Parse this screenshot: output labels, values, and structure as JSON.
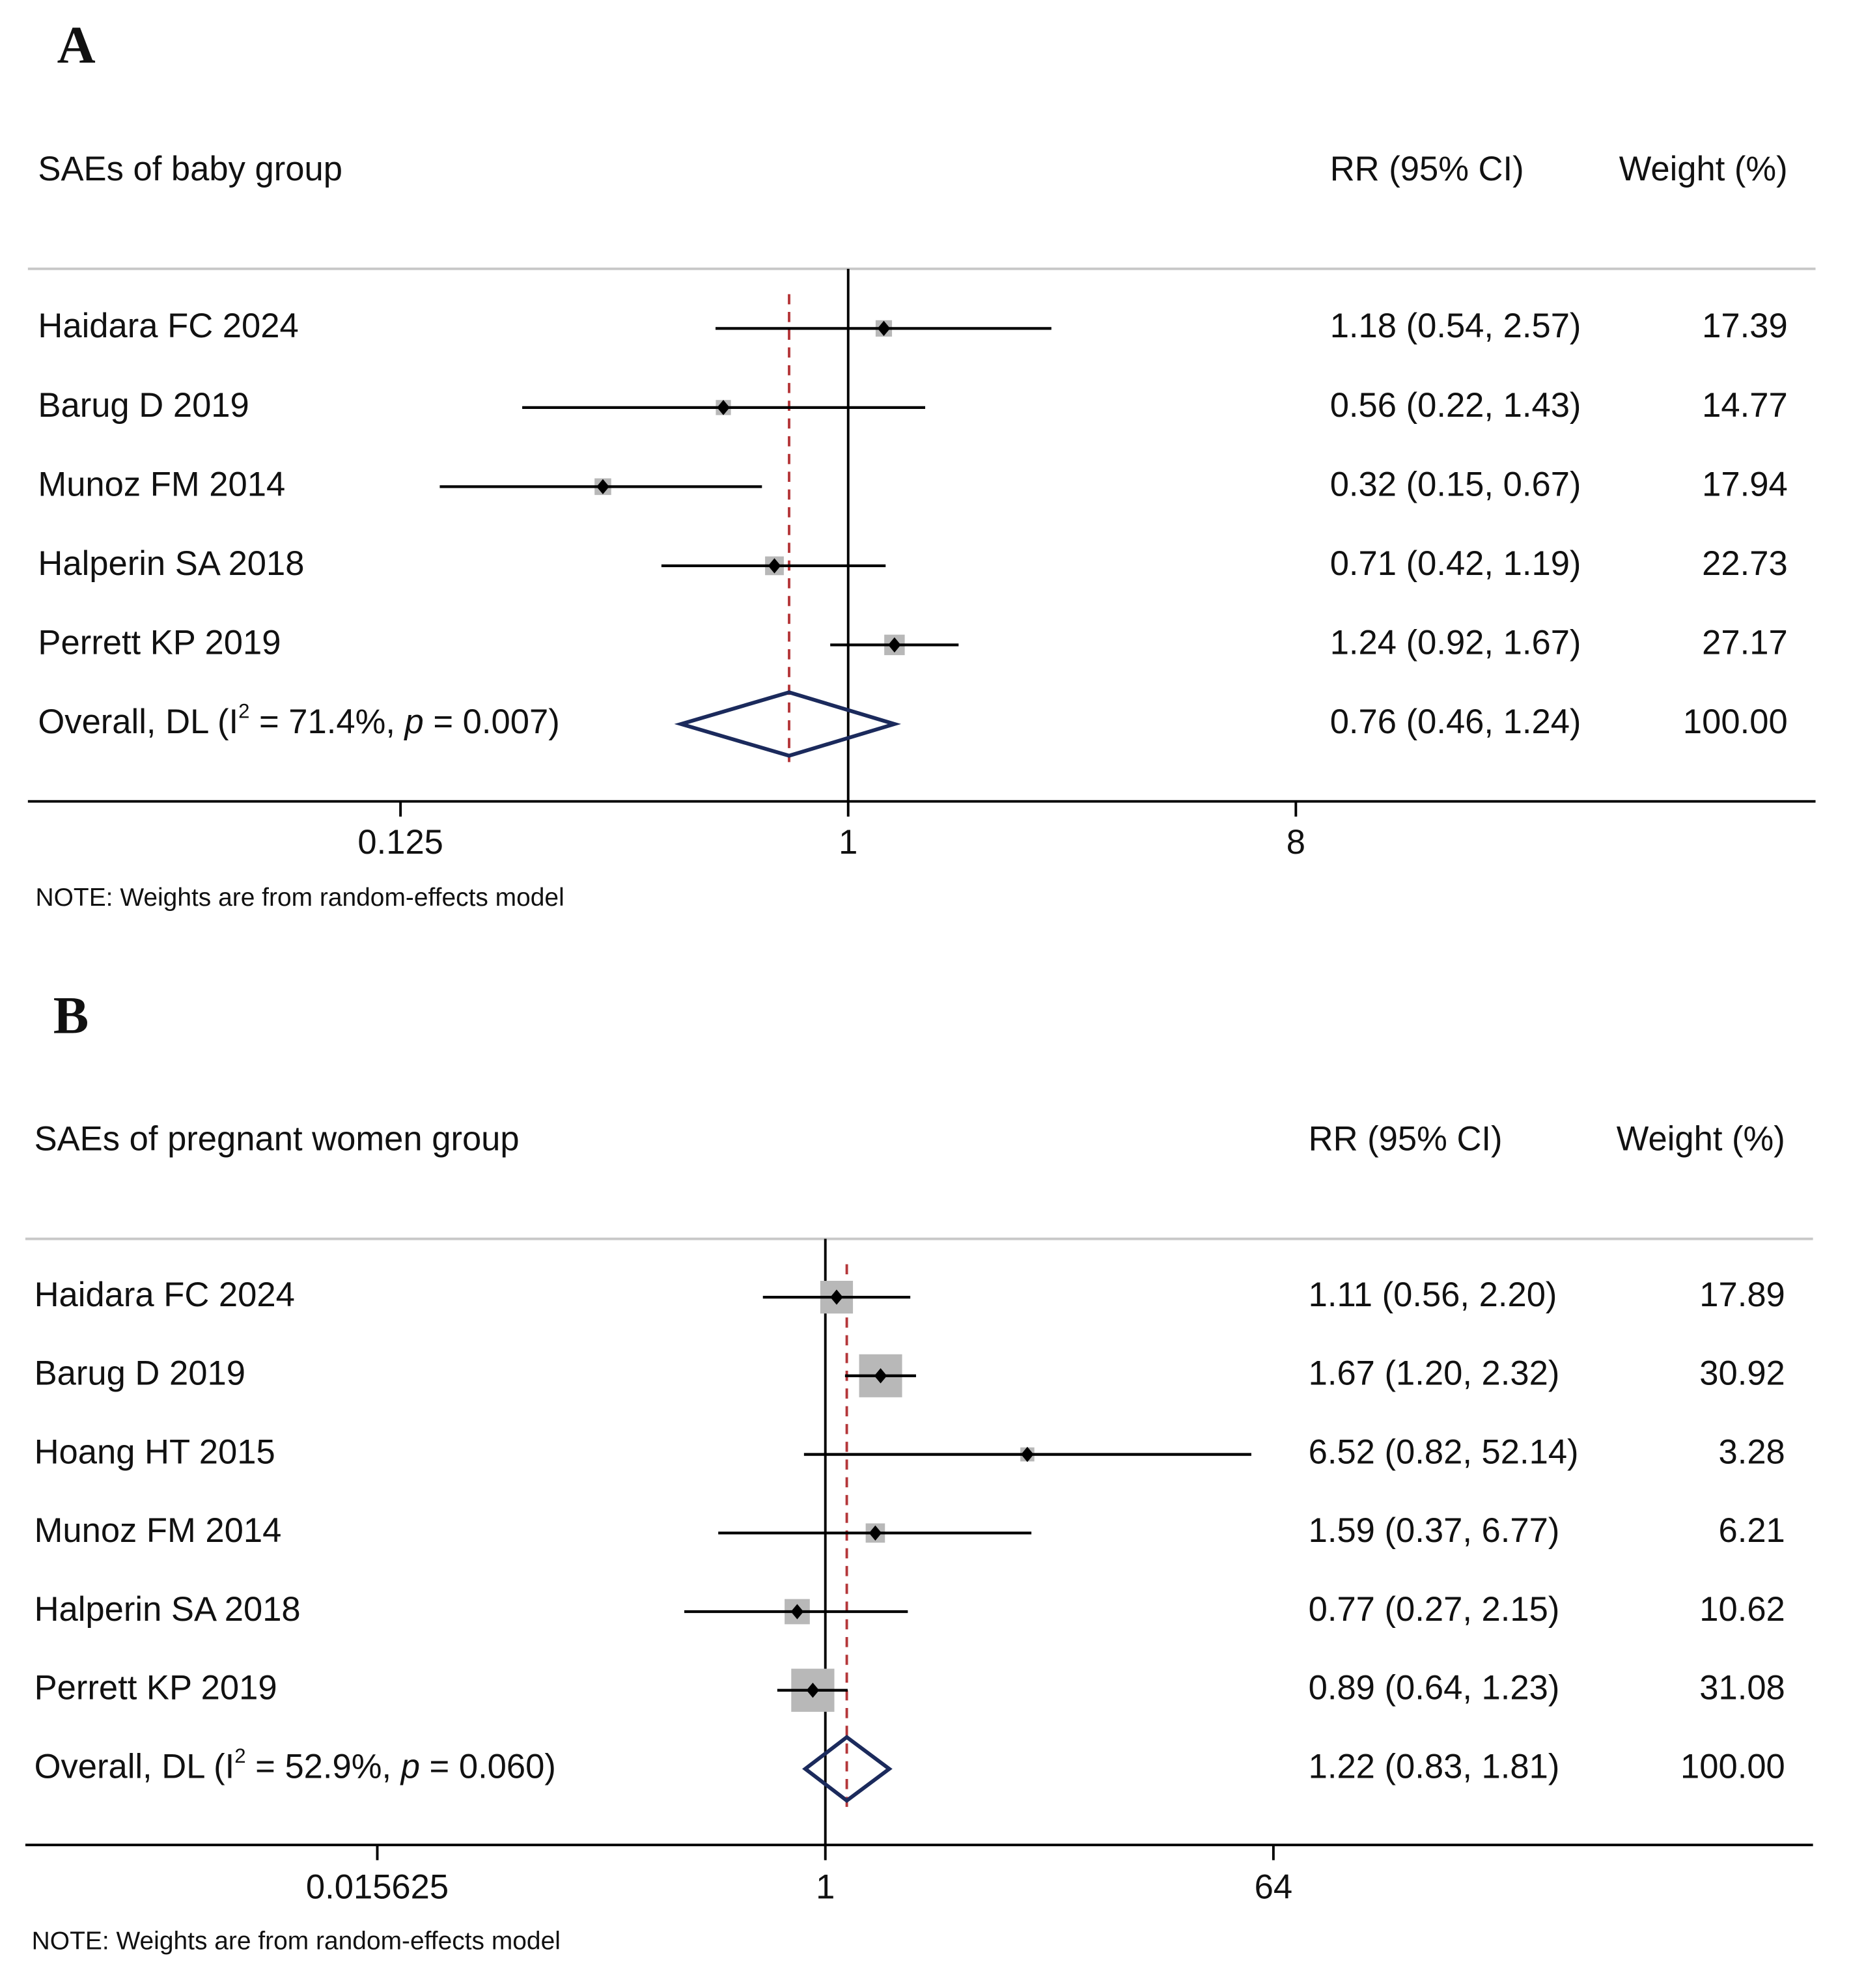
{
  "chart_data": [
    {
      "type": "forest",
      "panel_label": "A",
      "title": "SAEs of baby group",
      "col_effect": "RR (95% CI)",
      "col_weight": "Weight (%)",
      "scale": "log2",
      "xlim": [
        0.03,
        60
      ],
      "ticks": [
        0.125,
        1,
        8
      ],
      "tick_labels": [
        "0.125",
        "1",
        "8"
      ],
      "studies": [
        {
          "name": "Haidara FC 2024",
          "rr": 1.18,
          "lo": 0.54,
          "hi": 2.57,
          "ci_text": "1.18 (0.54, 2.57)",
          "weight": "17.39"
        },
        {
          "name": "Barug D 2019",
          "rr": 0.56,
          "lo": 0.22,
          "hi": 1.43,
          "ci_text": "0.56 (0.22, 1.43)",
          "weight": "14.77"
        },
        {
          "name": "Munoz FM 2014",
          "rr": 0.32,
          "lo": 0.15,
          "hi": 0.67,
          "ci_text": "0.32 (0.15, 0.67)",
          "weight": "17.94"
        },
        {
          "name": "Halperin SA 2018",
          "rr": 0.71,
          "lo": 0.42,
          "hi": 1.19,
          "ci_text": "0.71 (0.42, 1.19)",
          "weight": "22.73"
        },
        {
          "name": "Perrett KP 2019",
          "rr": 1.24,
          "lo": 0.92,
          "hi": 1.67,
          "ci_text": "1.24 (0.92, 1.67)",
          "weight": "27.17"
        }
      ],
      "overall": {
        "label_prefix": "Overall, DL (I",
        "sup": "2",
        "label_mid": " = 71.4%, ",
        "p_italic": "p",
        "label_end": " = 0.007)",
        "rr": 0.76,
        "lo": 0.46,
        "hi": 1.24,
        "ci_text": "0.76 (0.46, 1.24)",
        "weight": "100.00"
      },
      "note": "NOTE: Weights are from random-effects model"
    },
    {
      "type": "forest",
      "panel_label": "B",
      "title": "SAEs of pregnant women group",
      "col_effect": "RR (95% CI)",
      "col_weight": "Weight (%)",
      "scale": "log2",
      "ticks": [
        0.015625,
        1,
        64
      ],
      "tick_labels": [
        "0.015625",
        "1",
        "64"
      ],
      "studies": [
        {
          "name": "Haidara FC 2024",
          "rr": 1.11,
          "lo": 0.56,
          "hi": 2.2,
          "ci_text": "1.11 (0.56, 2.20)",
          "weight": "17.89"
        },
        {
          "name": "Barug D 2019",
          "rr": 1.67,
          "lo": 1.2,
          "hi": 2.32,
          "ci_text": "1.67 (1.20, 2.32)",
          "weight": "30.92"
        },
        {
          "name": "Hoang HT 2015",
          "rr": 6.52,
          "lo": 0.82,
          "hi": 52.14,
          "ci_text": "6.52 (0.82, 52.14)",
          "weight": "3.28"
        },
        {
          "name": "Munoz FM 2014",
          "rr": 1.59,
          "lo": 0.37,
          "hi": 6.77,
          "ci_text": "1.59 (0.37, 6.77)",
          "weight": "6.21"
        },
        {
          "name": "Halperin SA 2018",
          "rr": 0.77,
          "lo": 0.27,
          "hi": 2.15,
          "ci_text": "0.77 (0.27, 2.15)",
          "weight": "10.62"
        },
        {
          "name": "Perrett KP 2019",
          "rr": 0.89,
          "lo": 0.64,
          "hi": 1.23,
          "ci_text": "0.89 (0.64, 1.23)",
          "weight": "31.08"
        }
      ],
      "overall": {
        "label_prefix": "Overall, DL (I",
        "sup": "2",
        "label_mid": " = 52.9%, ",
        "p_italic": "p",
        "label_end": " = 0.060)",
        "rr": 1.22,
        "lo": 0.83,
        "hi": 1.81,
        "ci_text": "1.22 (0.83, 1.81)",
        "weight": "100.00"
      },
      "note": "NOTE: Weights are from random-effects model"
    }
  ],
  "colors": {
    "diamond": "#1b2a5c",
    "ref_line": "#b5373a",
    "box": "#b8b8b8",
    "divider": "#c8c8c8"
  }
}
